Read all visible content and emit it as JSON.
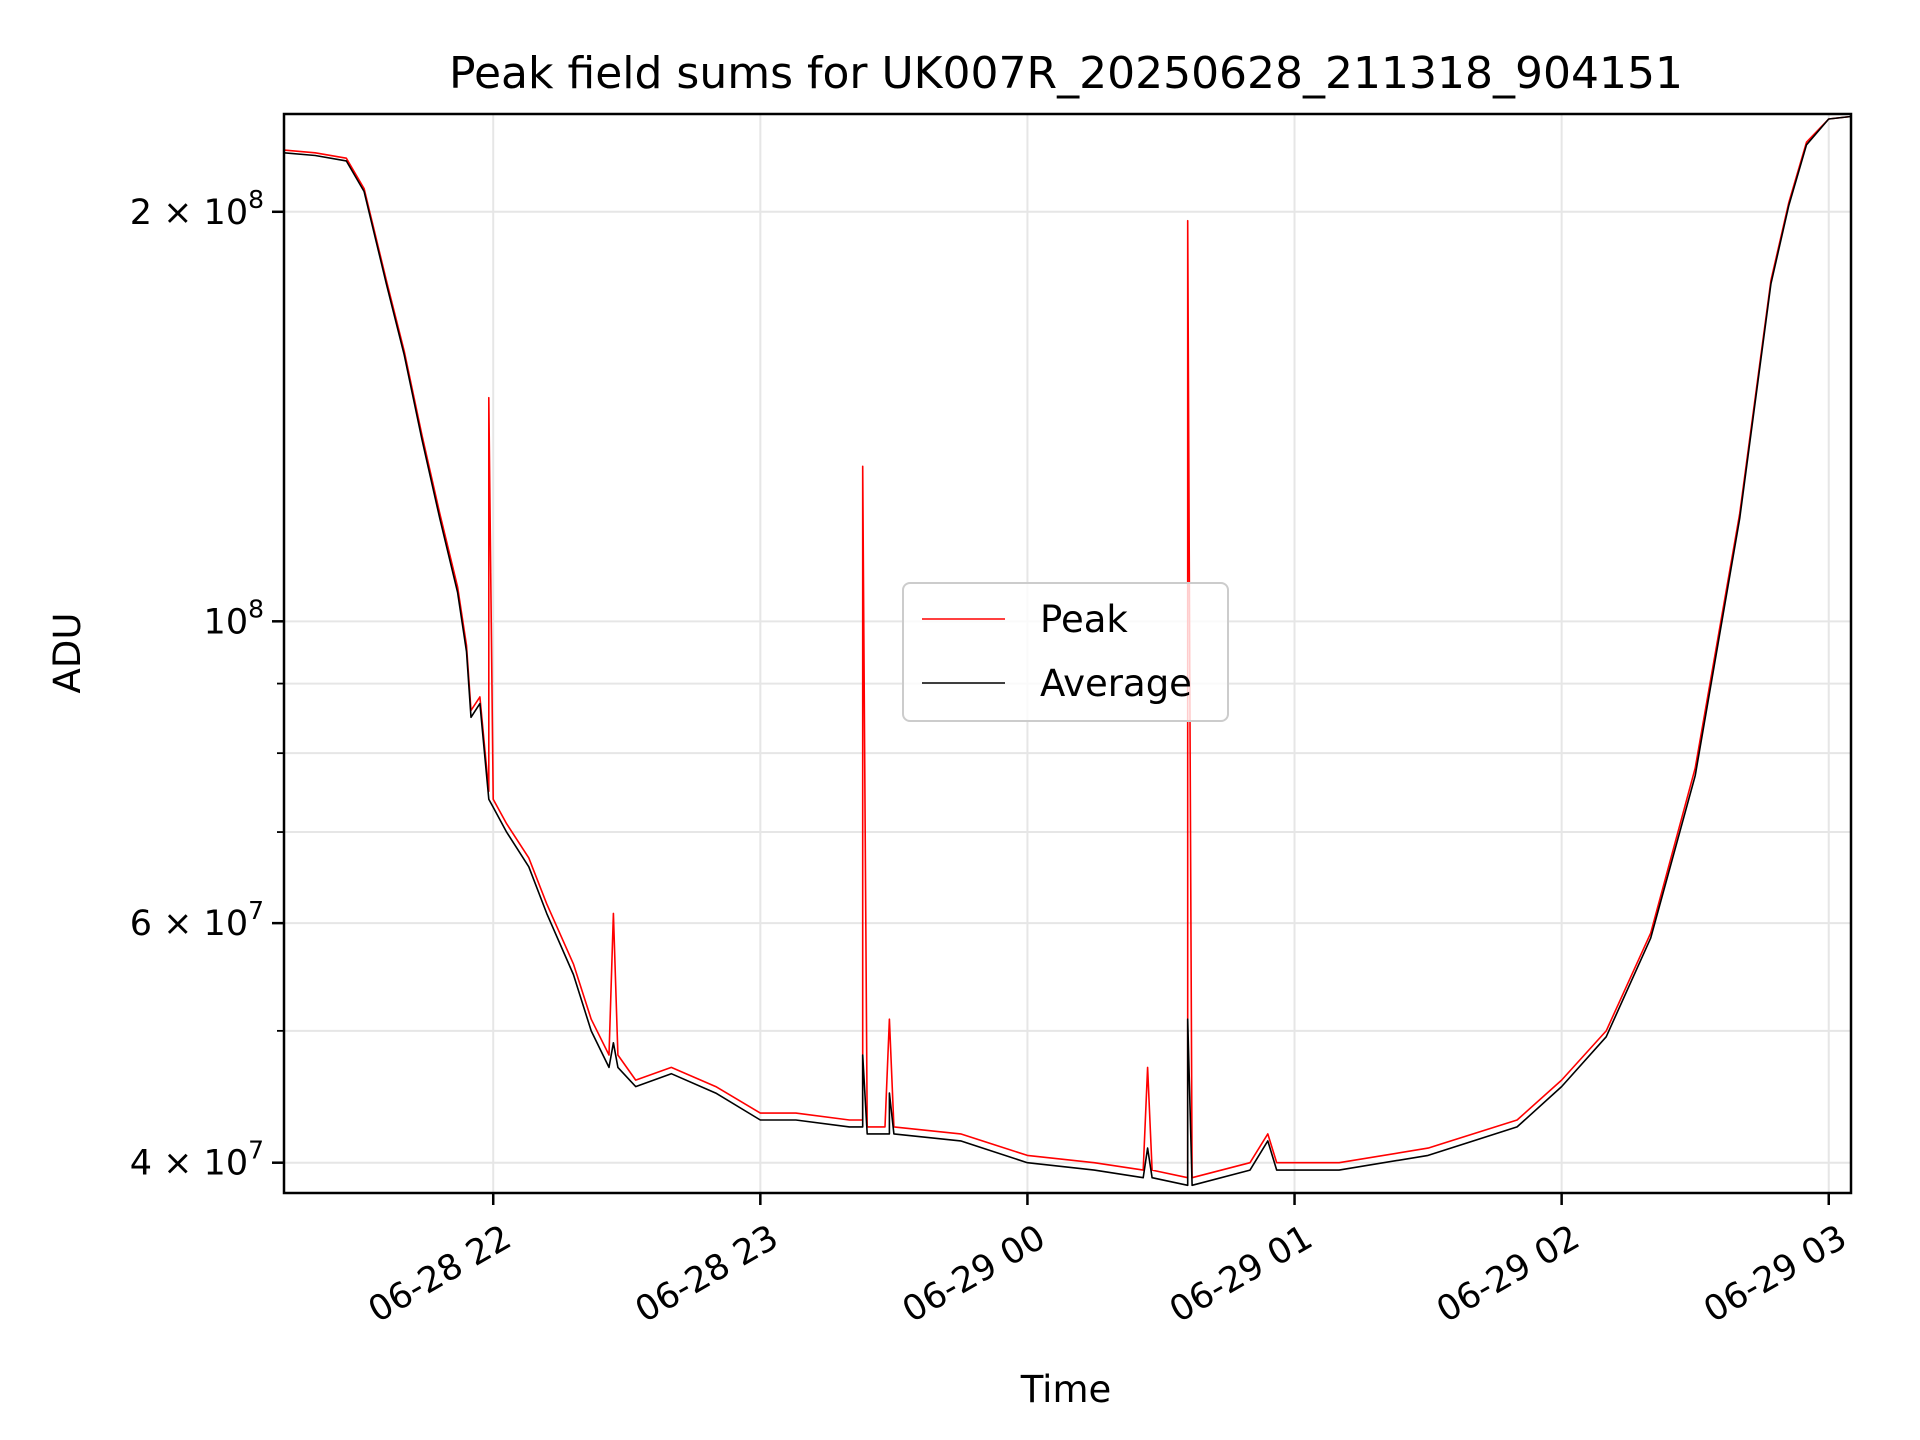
{
  "chart_data": {
    "type": "line",
    "title": "Peak field sums for UK007R_20250628_211318_904151",
    "xlabel": "Time",
    "ylabel": "ADU",
    "yscale": "log",
    "xlim": [
      "2025-06-28 21:13",
      "2025-06-29 03:05"
    ],
    "ylim": [
      38000000,
      236000000
    ],
    "x_ticks": [
      {
        "t": "2025-06-28 22:00",
        "label": "06-28 22"
      },
      {
        "t": "2025-06-28 23:00",
        "label": "06-28 23"
      },
      {
        "t": "2025-06-29 00:00",
        "label": "06-29 00"
      },
      {
        "t": "2025-06-29 01:00",
        "label": "06-29 01"
      },
      {
        "t": "2025-06-29 02:00",
        "label": "06-29 02"
      },
      {
        "t": "2025-06-29 03:00",
        "label": "06-29 03"
      }
    ],
    "y_major_ticks": [
      {
        "value": 40000000,
        "mantissa": "4 × 10",
        "exp": "7"
      },
      {
        "value": 60000000,
        "mantissa": "6 × 10",
        "exp": "7"
      },
      {
        "value": 100000000,
        "mantissa": "10",
        "exp": "8"
      },
      {
        "value": 200000000,
        "mantissa": "2 × 10",
        "exp": "8"
      }
    ],
    "y_minor_gridlines": [
      50000000,
      70000000,
      80000000,
      90000000
    ],
    "grid": true,
    "legend_position": "center",
    "series": [
      {
        "name": "Peak",
        "color": "#ff0000",
        "points": [
          [
            "2025-06-28 21:13",
            222000000
          ],
          [
            "2025-06-28 21:20",
            221000000
          ],
          [
            "2025-06-28 21:27",
            219000000
          ],
          [
            "2025-06-28 21:31",
            208000000
          ],
          [
            "2025-06-28 21:36",
            178000000
          ],
          [
            "2025-06-28 21:40",
            158000000
          ],
          [
            "2025-06-28 21:44",
            137000000
          ],
          [
            "2025-06-28 21:48",
            120000000
          ],
          [
            "2025-06-28 21:52",
            106000000
          ],
          [
            "2025-06-28 21:54",
            96000000
          ],
          [
            "2025-06-28 21:55",
            86000000
          ],
          [
            "2025-06-28 21:57",
            88000000
          ],
          [
            "2025-06-28 21:59",
            75000000
          ],
          [
            "2025-06-28 21:59",
            146000000
          ],
          [
            "2025-06-28 22:00",
            74000000
          ],
          [
            "2025-06-28 22:03",
            71000000
          ],
          [
            "2025-06-28 22:08",
            67000000
          ],
          [
            "2025-06-28 22:12",
            62000000
          ],
          [
            "2025-06-28 22:18",
            56000000
          ],
          [
            "2025-06-28 22:22",
            51000000
          ],
          [
            "2025-06-28 22:26",
            48000000
          ],
          [
            "2025-06-28 22:27",
            61000000
          ],
          [
            "2025-06-28 22:28",
            48000000
          ],
          [
            "2025-06-28 22:32",
            46000000
          ],
          [
            "2025-06-28 22:40",
            47000000
          ],
          [
            "2025-06-28 22:50",
            45500000
          ],
          [
            "2025-06-28 23:00",
            43500000
          ],
          [
            "2025-06-28 23:08",
            43500000
          ],
          [
            "2025-06-28 23:20",
            43000000
          ],
          [
            "2025-06-28 23:23",
            43000000
          ],
          [
            "2025-06-28 23:23",
            130000000
          ],
          [
            "2025-06-28 23:24",
            42500000
          ],
          [
            "2025-06-28 23:28",
            42500000
          ],
          [
            "2025-06-28 23:29",
            51000000
          ],
          [
            "2025-06-28 23:30",
            42500000
          ],
          [
            "2025-06-28 23:45",
            42000000
          ],
          [
            "2025-06-29 00:00",
            40500000
          ],
          [
            "2025-06-29 00:15",
            40000000
          ],
          [
            "2025-06-29 00:26",
            39500000
          ],
          [
            "2025-06-29 00:27",
            47000000
          ],
          [
            "2025-06-29 00:28",
            39500000
          ],
          [
            "2025-06-29 00:36",
            39000000
          ],
          [
            "2025-06-29 00:36",
            197000000
          ],
          [
            "2025-06-29 00:37",
            39000000
          ],
          [
            "2025-06-29 00:50",
            40000000
          ],
          [
            "2025-06-29 00:54",
            42000000
          ],
          [
            "2025-06-29 00:56",
            40000000
          ],
          [
            "2025-06-29 01:10",
            40000000
          ],
          [
            "2025-06-29 01:30",
            41000000
          ],
          [
            "2025-06-29 01:50",
            43000000
          ],
          [
            "2025-06-29 02:00",
            46000000
          ],
          [
            "2025-06-29 02:10",
            50000000
          ],
          [
            "2025-06-29 02:20",
            59000000
          ],
          [
            "2025-06-29 02:30",
            78000000
          ],
          [
            "2025-06-29 02:40",
            120000000
          ],
          [
            "2025-06-29 02:47",
            178000000
          ],
          [
            "2025-06-29 02:51",
            203000000
          ],
          [
            "2025-06-29 02:55",
            225000000
          ],
          [
            "2025-06-29 03:00",
            234000000
          ],
          [
            "2025-06-29 03:05",
            235000000
          ]
        ]
      },
      {
        "name": "Average",
        "color": "#000000",
        "points": [
          [
            "2025-06-28 21:13",
            221000000
          ],
          [
            "2025-06-28 21:20",
            220000000
          ],
          [
            "2025-06-28 21:27",
            218000000
          ],
          [
            "2025-06-28 21:31",
            207000000
          ],
          [
            "2025-06-28 21:36",
            177000000
          ],
          [
            "2025-06-28 21:40",
            157000000
          ],
          [
            "2025-06-28 21:44",
            136000000
          ],
          [
            "2025-06-28 21:48",
            119000000
          ],
          [
            "2025-06-28 21:52",
            105000000
          ],
          [
            "2025-06-28 21:54",
            95000000
          ],
          [
            "2025-06-28 21:55",
            85000000
          ],
          [
            "2025-06-28 21:57",
            87000000
          ],
          [
            "2025-06-28 21:59",
            74000000
          ],
          [
            "2025-06-28 22:00",
            73000000
          ],
          [
            "2025-06-28 22:03",
            70000000
          ],
          [
            "2025-06-28 22:08",
            66000000
          ],
          [
            "2025-06-28 22:12",
            61000000
          ],
          [
            "2025-06-28 22:18",
            55000000
          ],
          [
            "2025-06-28 22:22",
            50000000
          ],
          [
            "2025-06-28 22:26",
            47000000
          ],
          [
            "2025-06-28 22:27",
            49000000
          ],
          [
            "2025-06-28 22:28",
            47000000
          ],
          [
            "2025-06-28 22:32",
            45500000
          ],
          [
            "2025-06-28 22:40",
            46500000
          ],
          [
            "2025-06-28 22:50",
            45000000
          ],
          [
            "2025-06-28 23:00",
            43000000
          ],
          [
            "2025-06-28 23:08",
            43000000
          ],
          [
            "2025-06-28 23:20",
            42500000
          ],
          [
            "2025-06-28 23:23",
            42500000
          ],
          [
            "2025-06-28 23:23",
            48000000
          ],
          [
            "2025-06-28 23:24",
            42000000
          ],
          [
            "2025-06-28 23:29",
            42000000
          ],
          [
            "2025-06-28 23:29",
            45000000
          ],
          [
            "2025-06-28 23:30",
            42000000
          ],
          [
            "2025-06-28 23:45",
            41500000
          ],
          [
            "2025-06-29 00:00",
            40000000
          ],
          [
            "2025-06-29 00:15",
            39500000
          ],
          [
            "2025-06-29 00:26",
            39000000
          ],
          [
            "2025-06-29 00:27",
            41000000
          ],
          [
            "2025-06-29 00:28",
            39000000
          ],
          [
            "2025-06-29 00:36",
            38500000
          ],
          [
            "2025-06-29 00:36",
            51000000
          ],
          [
            "2025-06-29 00:37",
            38500000
          ],
          [
            "2025-06-29 00:50",
            39500000
          ],
          [
            "2025-06-29 00:54",
            41500000
          ],
          [
            "2025-06-29 00:56",
            39500000
          ],
          [
            "2025-06-29 01:10",
            39500000
          ],
          [
            "2025-06-29 01:30",
            40500000
          ],
          [
            "2025-06-29 01:50",
            42500000
          ],
          [
            "2025-06-29 02:00",
            45500000
          ],
          [
            "2025-06-29 02:10",
            49500000
          ],
          [
            "2025-06-29 02:20",
            58500000
          ],
          [
            "2025-06-29 02:30",
            77000000
          ],
          [
            "2025-06-29 02:40",
            119000000
          ],
          [
            "2025-06-29 02:47",
            177000000
          ],
          [
            "2025-06-29 02:51",
            202000000
          ],
          [
            "2025-06-29 02:55",
            224000000
          ],
          [
            "2025-06-29 03:00",
            234000000
          ],
          [
            "2025-06-29 03:05",
            235000000
          ]
        ]
      }
    ]
  }
}
